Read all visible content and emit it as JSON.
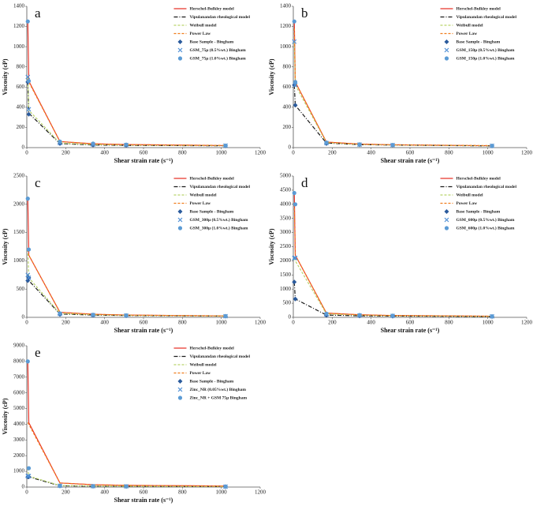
{
  "chart_data": [
    {
      "type": "line",
      "label": "a",
      "xlabel": "Shear strain rate (s⁻¹)",
      "ylabel": "Viscosity (cP)",
      "x": [
        5.1,
        10.2,
        170.3,
        340.6,
        510.9,
        1021.8
      ],
      "xlim": [
        0,
        1200
      ],
      "xticks": [
        0,
        200,
        400,
        600,
        800,
        1000,
        1200
      ],
      "ylim": [
        0,
        1400
      ],
      "yticks": [
        0,
        200,
        400,
        600,
        800,
        1000,
        1200,
        1400
      ],
      "series": [
        {
          "name": "Herschel-Bulkley model",
          "color": "#e8352b",
          "line_style": "solid",
          "values": [
            1250,
            660,
            60,
            38,
            30,
            20
          ]
        },
        {
          "name": "Vipulanandan rheological  model",
          "color": "#1a1a1a",
          "line_style": "dashdot",
          "values": [
            650,
            340,
            40,
            26,
            22,
            18
          ]
        },
        {
          "name": "Weibull model",
          "color": "#b9d36b",
          "line_style": "dashed",
          "values": [
            700,
            370,
            45,
            30,
            25,
            19
          ]
        },
        {
          "name": "Power Law",
          "color": "#f07d1c",
          "line_style": "dashed",
          "values": [
            680,
            650,
            60,
            38,
            30,
            22
          ]
        },
        {
          "name": "Base Sample - Bingham",
          "color": "#2a5a9c",
          "marker": "diamond",
          "values": [
            650,
            330,
            40,
            25,
            22,
            18
          ]
        },
        {
          "name": "GSM_75μ (0.5%wt.) Bingham",
          "color": "#4f8fd6",
          "marker": "x",
          "values": [
            700,
            380,
            45,
            30,
            25,
            20
          ]
        },
        {
          "name": "GSM_75μ (1.0%wt.) Bingham",
          "color": "#5b9bd5",
          "marker": "circle",
          "values": [
            1250,
            660,
            60,
            40,
            30,
            20
          ]
        }
      ]
    },
    {
      "type": "line",
      "label": "b",
      "xlabel": "Shear strain rate (s⁻¹)",
      "ylabel": "Viscosity (cP)",
      "x": [
        5.1,
        10.2,
        170.3,
        340.6,
        510.9,
        1021.8
      ],
      "xlim": [
        0,
        1200
      ],
      "xticks": [
        0,
        200,
        400,
        600,
        800,
        1000,
        1200
      ],
      "ylim": [
        0,
        1400
      ],
      "yticks": [
        0,
        200,
        400,
        600,
        800,
        1000,
        1200,
        1400
      ],
      "series": [
        {
          "name": "Herschel-Bulkley model",
          "color": "#e8352b",
          "line_style": "solid",
          "values": [
            1250,
            650,
            55,
            35,
            28,
            18
          ]
        },
        {
          "name": "Vipulanandan rheological  model",
          "color": "#1a1a1a",
          "line_style": "dashdot",
          "values": [
            620,
            420,
            45,
            30,
            25,
            17
          ]
        },
        {
          "name": "Weibull model",
          "color": "#b9d36b",
          "line_style": "dashed",
          "values": [
            1050,
            620,
            50,
            32,
            26,
            18
          ]
        },
        {
          "name": "Power Law",
          "color": "#f07d1c",
          "line_style": "dashed",
          "values": [
            1180,
            650,
            55,
            35,
            28,
            20
          ]
        },
        {
          "name": "Base Sample - Bingham",
          "color": "#2a5a9c",
          "marker": "diamond",
          "values": [
            620,
            420,
            40,
            28,
            24,
            17
          ]
        },
        {
          "name": "GSM_150μ (0.5%wt.) Bingham",
          "color": "#4f8fd6",
          "marker": "x",
          "values": [
            1050,
            620,
            45,
            30,
            25,
            18
          ]
        },
        {
          "name": "GSM_150μ (1.0%wt.) Bingham",
          "color": "#5b9bd5",
          "marker": "circle",
          "values": [
            1250,
            650,
            50,
            32,
            26,
            18
          ]
        }
      ]
    },
    {
      "type": "line",
      "label": "c",
      "xlabel": "Shear strain rate (s⁻¹)",
      "ylabel": "Viscosity (cP)",
      "x": [
        5.1,
        10.2,
        170.3,
        340.6,
        510.9,
        1021.8
      ],
      "xlim": [
        0,
        1200
      ],
      "xticks": [
        0,
        200,
        400,
        600,
        800,
        1000,
        1200
      ],
      "ylim": [
        0,
        2500
      ],
      "yticks": [
        0,
        500,
        1000,
        1500,
        2000,
        2500
      ],
      "series": [
        {
          "name": "Herschel-Bulkley model",
          "color": "#e8352b",
          "line_style": "solid",
          "values": [
            2100,
            1100,
            90,
            55,
            40,
            25
          ]
        },
        {
          "name": "Vipulanandan rheological  model",
          "color": "#1a1a1a",
          "line_style": "dashdot",
          "values": [
            750,
            650,
            60,
            40,
            32,
            22
          ]
        },
        {
          "name": "Weibull model",
          "color": "#b9d36b",
          "line_style": "dashed",
          "values": [
            1200,
            700,
            70,
            45,
            35,
            22
          ]
        },
        {
          "name": "Power Law",
          "color": "#f07d1c",
          "line_style": "dashed",
          "values": [
            1200,
            1100,
            90,
            55,
            40,
            25
          ]
        },
        {
          "name": "Base Sample - Bingham",
          "color": "#2a5a9c",
          "marker": "diamond",
          "values": [
            650,
            700,
            50,
            35,
            28,
            20
          ]
        },
        {
          "name": "GSM_300μ (0.5%wt.) Bingham",
          "color": "#4f8fd6",
          "marker": "x",
          "values": [
            750,
            700,
            60,
            40,
            30,
            20
          ]
        },
        {
          "name": "GSM_300μ (1.0%wt.) Bingham",
          "color": "#5b9bd5",
          "marker": "circle",
          "values": [
            2100,
            1200,
            70,
            45,
            35,
            22
          ]
        }
      ]
    },
    {
      "type": "line",
      "label": "d",
      "xlabel": "Shear strain rate (s⁻¹)",
      "ylabel": "Viscosity (cP)",
      "x": [
        5.1,
        10.2,
        170.3,
        340.6,
        510.9,
        1021.8
      ],
      "xlim": [
        0,
        1200
      ],
      "xticks": [
        0,
        200,
        400,
        600,
        800,
        1000,
        1200
      ],
      "ylim": [
        0,
        5000
      ],
      "yticks": [
        0,
        500,
        1000,
        1500,
        2000,
        2500,
        3000,
        3500,
        4000,
        4500,
        5000
      ],
      "series": [
        {
          "name": "Herschel-Bulkley model",
          "color": "#e8352b",
          "line_style": "solid",
          "values": [
            4400,
            2200,
            150,
            90,
            65,
            40
          ]
        },
        {
          "name": "Vipulanandan rheological  model",
          "color": "#1a1a1a",
          "line_style": "dashdot",
          "values": [
            1250,
            650,
            80,
            55,
            45,
            30
          ]
        },
        {
          "name": "Weibull model",
          "color": "#b9d36b",
          "line_style": "dashed",
          "values": [
            2100,
            2000,
            120,
            75,
            55,
            35
          ]
        },
        {
          "name": "Power Law",
          "color": "#f07d1c",
          "line_style": "dashed",
          "values": [
            4000,
            2200,
            150,
            90,
            65,
            40
          ]
        },
        {
          "name": "Base Sample - Bingham",
          "color": "#2a5a9c",
          "marker": "diamond",
          "values": [
            1250,
            650,
            70,
            50,
            40,
            28
          ]
        },
        {
          "name": "GSM_600μ (0.5%wt.) Bingham",
          "color": "#4f8fd6",
          "marker": "x",
          "values": [
            2100,
            2100,
            100,
            65,
            50,
            32
          ]
        },
        {
          "name": "GSM_600μ (1.0%wt.) Bingham",
          "color": "#5b9bd5",
          "marker": "circle",
          "values": [
            4400,
            4000,
            130,
            80,
            60,
            35
          ]
        }
      ]
    },
    {
      "type": "line",
      "label": "e",
      "xlabel": "Shear strain rate (s⁻¹)",
      "ylabel": "Viscosity (cP)",
      "x": [
        5.1,
        10.2,
        170.3,
        340.6,
        510.9,
        1021.8
      ],
      "xlim": [
        0,
        1200
      ],
      "xticks": [
        0,
        200,
        400,
        600,
        800,
        1000,
        1200
      ],
      "ylim": [
        0,
        9000
      ],
      "yticks": [
        0,
        1000,
        2000,
        3000,
        4000,
        5000,
        6000,
        7000,
        8000,
        9000
      ],
      "series": [
        {
          "name": "Herschel-Bulkley model",
          "color": "#e8352b",
          "line_style": "solid",
          "values": [
            8000,
            4100,
            260,
            150,
            110,
            65
          ]
        },
        {
          "name": "Vipulanandan rheological  model",
          "color": "#1a1a1a",
          "line_style": "dashdot",
          "values": [
            700,
            650,
            80,
            55,
            45,
            30
          ]
        },
        {
          "name": "Weibull model",
          "color": "#b9d36b",
          "line_style": "dashed",
          "values": [
            1200,
            700,
            100,
            65,
            50,
            32
          ]
        },
        {
          "name": "Power Law",
          "color": "#f07d1c",
          "line_style": "dashed",
          "values": [
            4100,
            4000,
            260,
            150,
            110,
            65
          ]
        },
        {
          "name": "Base Sample - Bingham",
          "color": "#2a5a9c",
          "marker": "diamond",
          "values": [
            650,
            650,
            70,
            50,
            40,
            28
          ]
        },
        {
          "name": "Zinc_NR (0.05%wt.) Bingham",
          "color": "#4f8fd6",
          "marker": "x",
          "values": [
            700,
            700,
            80,
            55,
            45,
            30
          ]
        },
        {
          "name": "Zinc_NR + GSM 75μ Bingham",
          "color": "#5b9bd5",
          "marker": "circle",
          "values": [
            8000,
            1200,
            90,
            60,
            48,
            30
          ]
        }
      ]
    }
  ]
}
